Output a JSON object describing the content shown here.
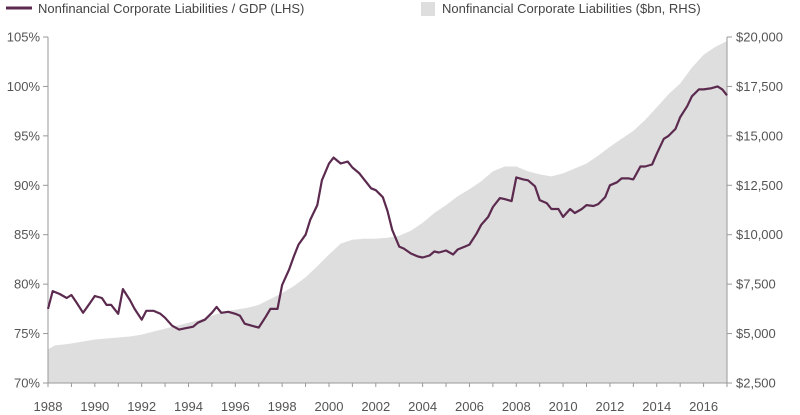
{
  "chart_data": {
    "type": "line",
    "title": "",
    "xlabel": "",
    "ylabel_left": "",
    "ylabel_right": "",
    "legend_placement": "top",
    "grid": false,
    "colors": {
      "line": "#5b2a4e",
      "area": "#dedede",
      "axis": "#999999"
    },
    "x_ticks": [
      "1988",
      "1990",
      "1992",
      "1994",
      "1996",
      "1998",
      "2000",
      "2002",
      "2004",
      "2006",
      "2008",
      "2010",
      "2012",
      "2014",
      "2016"
    ],
    "left_axis": {
      "ticks": [
        "70%",
        "75%",
        "80%",
        "85%",
        "90%",
        "95%",
        "100%",
        "105%"
      ],
      "ylim": [
        70,
        105
      ]
    },
    "right_axis": {
      "ticks": [
        "$2,500",
        "$5,000",
        "$7,500",
        "$10,000",
        "$12,500",
        "$15,000",
        "$17,500",
        "$20,000"
      ],
      "ylim": [
        2500,
        20000
      ]
    },
    "series": [
      {
        "name": "Nonfinancial Corporate Liabilities / GDP (LHS)",
        "axis": "left",
        "style": "line",
        "points": [
          [
            1988.0,
            77.5
          ],
          [
            1988.2,
            79.3
          ],
          [
            1988.5,
            79.0
          ],
          [
            1988.8,
            78.6
          ],
          [
            1989.0,
            78.9
          ],
          [
            1989.2,
            78.2
          ],
          [
            1989.5,
            77.1
          ],
          [
            1989.8,
            78.1
          ],
          [
            1990.0,
            78.8
          ],
          [
            1990.3,
            78.6
          ],
          [
            1990.5,
            77.9
          ],
          [
            1990.7,
            77.9
          ],
          [
            1991.0,
            77.0
          ],
          [
            1991.2,
            79.5
          ],
          [
            1991.5,
            78.4
          ],
          [
            1991.7,
            77.5
          ],
          [
            1992.0,
            76.4
          ],
          [
            1992.2,
            77.3
          ],
          [
            1992.5,
            77.3
          ],
          [
            1992.8,
            77.0
          ],
          [
            1993.0,
            76.6
          ],
          [
            1993.3,
            75.8
          ],
          [
            1993.6,
            75.4
          ],
          [
            1993.8,
            75.5
          ],
          [
            1994.2,
            75.7
          ],
          [
            1994.4,
            76.1
          ],
          [
            1994.7,
            76.4
          ],
          [
            1995.0,
            77.1
          ],
          [
            1995.2,
            77.7
          ],
          [
            1995.4,
            77.1
          ],
          [
            1995.7,
            77.2
          ],
          [
            1996.0,
            77.0
          ],
          [
            1996.2,
            76.8
          ],
          [
            1996.4,
            76.0
          ],
          [
            1996.7,
            75.8
          ],
          [
            1997.0,
            75.6
          ],
          [
            1997.3,
            76.7
          ],
          [
            1997.5,
            77.5
          ],
          [
            1997.8,
            77.5
          ],
          [
            1998.0,
            79.9
          ],
          [
            1998.3,
            81.5
          ],
          [
            1998.5,
            82.8
          ],
          [
            1998.7,
            84.0
          ],
          [
            1999.0,
            85.0
          ],
          [
            1999.2,
            86.5
          ],
          [
            1999.5,
            88.0
          ],
          [
            1999.7,
            90.5
          ],
          [
            2000.0,
            92.2
          ],
          [
            2000.2,
            92.8
          ],
          [
            2000.5,
            92.2
          ],
          [
            2000.8,
            92.4
          ],
          [
            2001.0,
            91.8
          ],
          [
            2001.3,
            91.2
          ],
          [
            2001.5,
            90.6
          ],
          [
            2001.8,
            89.7
          ],
          [
            2002.0,
            89.5
          ],
          [
            2002.3,
            88.8
          ],
          [
            2002.5,
            87.4
          ],
          [
            2002.7,
            85.5
          ],
          [
            2003.0,
            83.8
          ],
          [
            2003.2,
            83.6
          ],
          [
            2003.5,
            83.1
          ],
          [
            2003.8,
            82.8
          ],
          [
            2004.0,
            82.7
          ],
          [
            2004.3,
            82.9
          ],
          [
            2004.5,
            83.3
          ],
          [
            2004.7,
            83.2
          ],
          [
            2005.0,
            83.4
          ],
          [
            2005.3,
            83.0
          ],
          [
            2005.5,
            83.5
          ],
          [
            2005.8,
            83.8
          ],
          [
            2006.0,
            84.0
          ],
          [
            2006.3,
            85.1
          ],
          [
            2006.5,
            86.0
          ],
          [
            2006.8,
            86.8
          ],
          [
            2007.0,
            87.8
          ],
          [
            2007.3,
            88.7
          ],
          [
            2007.5,
            88.6
          ],
          [
            2007.8,
            88.4
          ],
          [
            2008.0,
            90.8
          ],
          [
            2008.3,
            90.6
          ],
          [
            2008.5,
            90.5
          ],
          [
            2008.8,
            89.9
          ],
          [
            2009.0,
            88.5
          ],
          [
            2009.3,
            88.2
          ],
          [
            2009.5,
            87.6
          ],
          [
            2009.8,
            87.6
          ],
          [
            2010.0,
            86.8
          ],
          [
            2010.3,
            87.6
          ],
          [
            2010.5,
            87.2
          ],
          [
            2010.8,
            87.6
          ],
          [
            2011.0,
            88.0
          ],
          [
            2011.3,
            87.9
          ],
          [
            2011.5,
            88.1
          ],
          [
            2011.8,
            88.8
          ],
          [
            2012.0,
            90.0
          ],
          [
            2012.3,
            90.3
          ],
          [
            2012.5,
            90.7
          ],
          [
            2012.8,
            90.7
          ],
          [
            2013.0,
            90.6
          ],
          [
            2013.3,
            91.9
          ],
          [
            2013.5,
            91.9
          ],
          [
            2013.8,
            92.1
          ],
          [
            2014.0,
            93.2
          ],
          [
            2014.3,
            94.7
          ],
          [
            2014.5,
            95.0
          ],
          [
            2014.8,
            95.7
          ],
          [
            2015.0,
            96.9
          ],
          [
            2015.3,
            98.0
          ],
          [
            2015.5,
            99.0
          ],
          [
            2015.8,
            99.7
          ],
          [
            2016.0,
            99.7
          ],
          [
            2016.3,
            99.8
          ],
          [
            2016.6,
            100.0
          ],
          [
            2016.8,
            99.7
          ],
          [
            2017.0,
            99.1
          ]
        ]
      },
      {
        "name": "Nonfinancial Corporate Liabilities ($bn, RHS)",
        "axis": "right",
        "style": "area",
        "points": [
          [
            1988.0,
            4200
          ],
          [
            1988.3,
            4400
          ],
          [
            1988.7,
            4450
          ],
          [
            1989.0,
            4500
          ],
          [
            1989.5,
            4600
          ],
          [
            1990.0,
            4700
          ],
          [
            1990.5,
            4750
          ],
          [
            1991.0,
            4800
          ],
          [
            1991.5,
            4850
          ],
          [
            1992.0,
            4950
          ],
          [
            1992.5,
            5100
          ],
          [
            1993.0,
            5250
          ],
          [
            1993.5,
            5400
          ],
          [
            1994.0,
            5550
          ],
          [
            1994.5,
            5700
          ],
          [
            1995.0,
            5900
          ],
          [
            1995.5,
            6100
          ],
          [
            1996.0,
            6200
          ],
          [
            1996.5,
            6300
          ],
          [
            1997.0,
            6450
          ],
          [
            1997.5,
            6750
          ],
          [
            1998.0,
            7050
          ],
          [
            1998.5,
            7400
          ],
          [
            1999.0,
            7850
          ],
          [
            1999.5,
            8400
          ],
          [
            2000.0,
            9000
          ],
          [
            2000.5,
            9550
          ],
          [
            2001.0,
            9750
          ],
          [
            2001.5,
            9800
          ],
          [
            2002.0,
            9800
          ],
          [
            2002.5,
            9850
          ],
          [
            2003.0,
            9950
          ],
          [
            2003.5,
            10200
          ],
          [
            2004.0,
            10600
          ],
          [
            2004.5,
            11100
          ],
          [
            2005.0,
            11500
          ],
          [
            2005.5,
            11950
          ],
          [
            2006.0,
            12300
          ],
          [
            2006.5,
            12700
          ],
          [
            2007.0,
            13200
          ],
          [
            2007.5,
            13450
          ],
          [
            2008.0,
            13450
          ],
          [
            2008.5,
            13200
          ],
          [
            2009.0,
            13050
          ],
          [
            2009.5,
            12950
          ],
          [
            2010.0,
            13100
          ],
          [
            2010.5,
            13350
          ],
          [
            2011.0,
            13600
          ],
          [
            2011.5,
            14000
          ],
          [
            2012.0,
            14450
          ],
          [
            2012.5,
            14850
          ],
          [
            2013.0,
            15250
          ],
          [
            2013.5,
            15800
          ],
          [
            2014.0,
            16450
          ],
          [
            2014.5,
            17100
          ],
          [
            2015.0,
            17650
          ],
          [
            2015.5,
            18450
          ],
          [
            2016.0,
            19100
          ],
          [
            2016.5,
            19500
          ],
          [
            2017.0,
            19800
          ]
        ]
      }
    ]
  }
}
